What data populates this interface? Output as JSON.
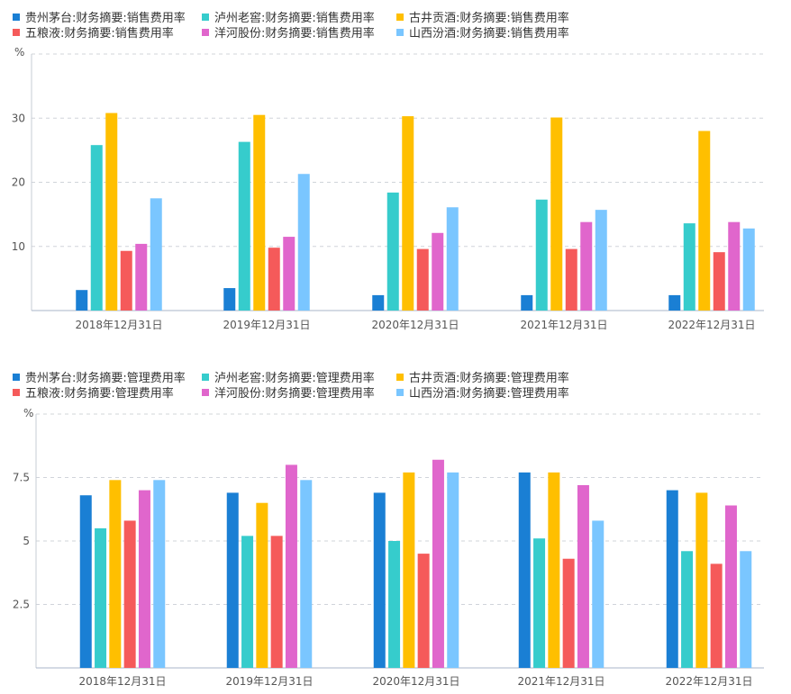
{
  "chart_data": [
    {
      "type": "bar",
      "unit": "%",
      "categories": [
        "2018年12月31日",
        "2019年12月31日",
        "2020年12月31日",
        "2021年12月31日",
        "2022年12月31日"
      ],
      "yticks": [
        "10",
        "20",
        "30"
      ],
      "ylim": [
        0,
        40
      ],
      "grid": true,
      "legend_position": "top-left",
      "series": [
        {
          "name": "贵州茅台:财务摘要:销售费用率",
          "color": "#1a7fd4",
          "values": [
            3.2,
            3.5,
            2.4,
            2.4,
            2.4
          ]
        },
        {
          "name": "泸州老窖:财务摘要:销售费用率",
          "color": "#36cccc",
          "values": [
            25.8,
            26.3,
            18.4,
            17.3,
            13.6
          ]
        },
        {
          "name": "古井贡酒:财务摘要:销售费用率",
          "color": "#ffbf00",
          "values": [
            30.8,
            30.5,
            30.3,
            30.1,
            28.0
          ]
        },
        {
          "name": "五粮液:财务摘要:销售费用率",
          "color": "#f55a5a",
          "values": [
            9.3,
            9.8,
            9.6,
            9.6,
            9.1
          ]
        },
        {
          "name": "洋河股份:财务摘要:销售费用率",
          "color": "#e066cc",
          "values": [
            10.4,
            11.5,
            12.1,
            13.8,
            13.8
          ]
        },
        {
          "name": "山西汾酒:财务摘要:销售费用率",
          "color": "#7ac6ff",
          "values": [
            17.5,
            21.3,
            16.1,
            15.7,
            12.8
          ]
        }
      ]
    },
    {
      "type": "bar",
      "unit": "%",
      "categories": [
        "2018年12月31日",
        "2019年12月31日",
        "2020年12月31日",
        "2021年12月31日",
        "2022年12月31日"
      ],
      "yticks": [
        "2.5",
        "5",
        "7.5"
      ],
      "ylim": [
        0,
        10
      ],
      "grid": true,
      "legend_position": "top-left",
      "series": [
        {
          "name": "贵州茅台:财务摘要:管理费用率",
          "color": "#1a7fd4",
          "values": [
            6.8,
            6.9,
            6.9,
            7.7,
            7.0
          ]
        },
        {
          "name": "泸州老窖:财务摘要:管理费用率",
          "color": "#36cccc",
          "values": [
            5.5,
            5.2,
            5.0,
            5.1,
            4.6
          ]
        },
        {
          "name": "古井贡酒:财务摘要:管理费用率",
          "color": "#ffbf00",
          "values": [
            7.4,
            6.5,
            7.7,
            7.7,
            6.9
          ]
        },
        {
          "name": "五粮液:财务摘要:管理费用率",
          "color": "#f55a5a",
          "values": [
            5.8,
            5.2,
            4.5,
            4.3,
            4.1
          ]
        },
        {
          "name": "洋河股份:财务摘要:管理费用率",
          "color": "#e066cc",
          "values": [
            7.0,
            8.0,
            8.2,
            7.2,
            6.4
          ]
        },
        {
          "name": "山西汾酒:财务摘要:管理费用率",
          "color": "#7ac6ff",
          "values": [
            7.4,
            7.4,
            7.7,
            5.8,
            4.6
          ]
        }
      ]
    }
  ]
}
